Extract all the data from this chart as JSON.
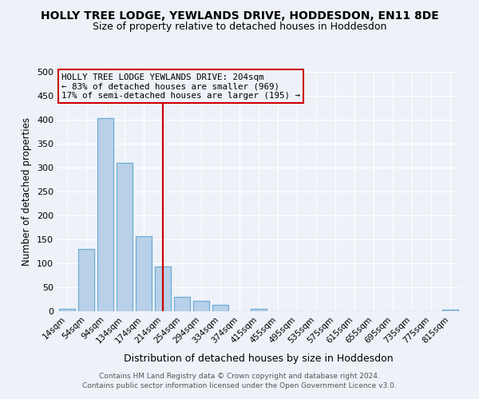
{
  "title": "HOLLY TREE LODGE, YEWLANDS DRIVE, HODDESDON, EN11 8DE",
  "subtitle": "Size of property relative to detached houses in Hoddesdon",
  "xlabel": "Distribution of detached houses by size in Hoddesdon",
  "ylabel": "Number of detached properties",
  "bin_labels": [
    "14sqm",
    "54sqm",
    "94sqm",
    "134sqm",
    "174sqm",
    "214sqm",
    "254sqm",
    "294sqm",
    "334sqm",
    "374sqm",
    "415sqm",
    "455sqm",
    "495sqm",
    "535sqm",
    "575sqm",
    "615sqm",
    "655sqm",
    "695sqm",
    "735sqm",
    "775sqm",
    "815sqm"
  ],
  "bar_values": [
    5,
    130,
    403,
    310,
    156,
    93,
    30,
    22,
    14,
    0,
    5,
    0,
    0,
    0,
    0,
    0,
    0,
    0,
    0,
    0,
    3
  ],
  "bar_color": "#b8d0e8",
  "bar_edge_color": "#6aaad4",
  "ylim": [
    0,
    500
  ],
  "yticks": [
    0,
    50,
    100,
    150,
    200,
    250,
    300,
    350,
    400,
    450,
    500
  ],
  "property_line_x": 5.0,
  "property_line_color": "#cc0000",
  "annotation_title": "HOLLY TREE LODGE YEWLANDS DRIVE: 204sqm",
  "annotation_line1": "← 83% of detached houses are smaller (969)",
  "annotation_line2": "17% of semi-detached houses are larger (195) →",
  "annotation_box_color": "#cc0000",
  "footer1": "Contains HM Land Registry data © Crown copyright and database right 2024.",
  "footer2": "Contains public sector information licensed under the Open Government Licence v3.0.",
  "background_color": "#eef2f8",
  "grid_color": "#ffffff"
}
